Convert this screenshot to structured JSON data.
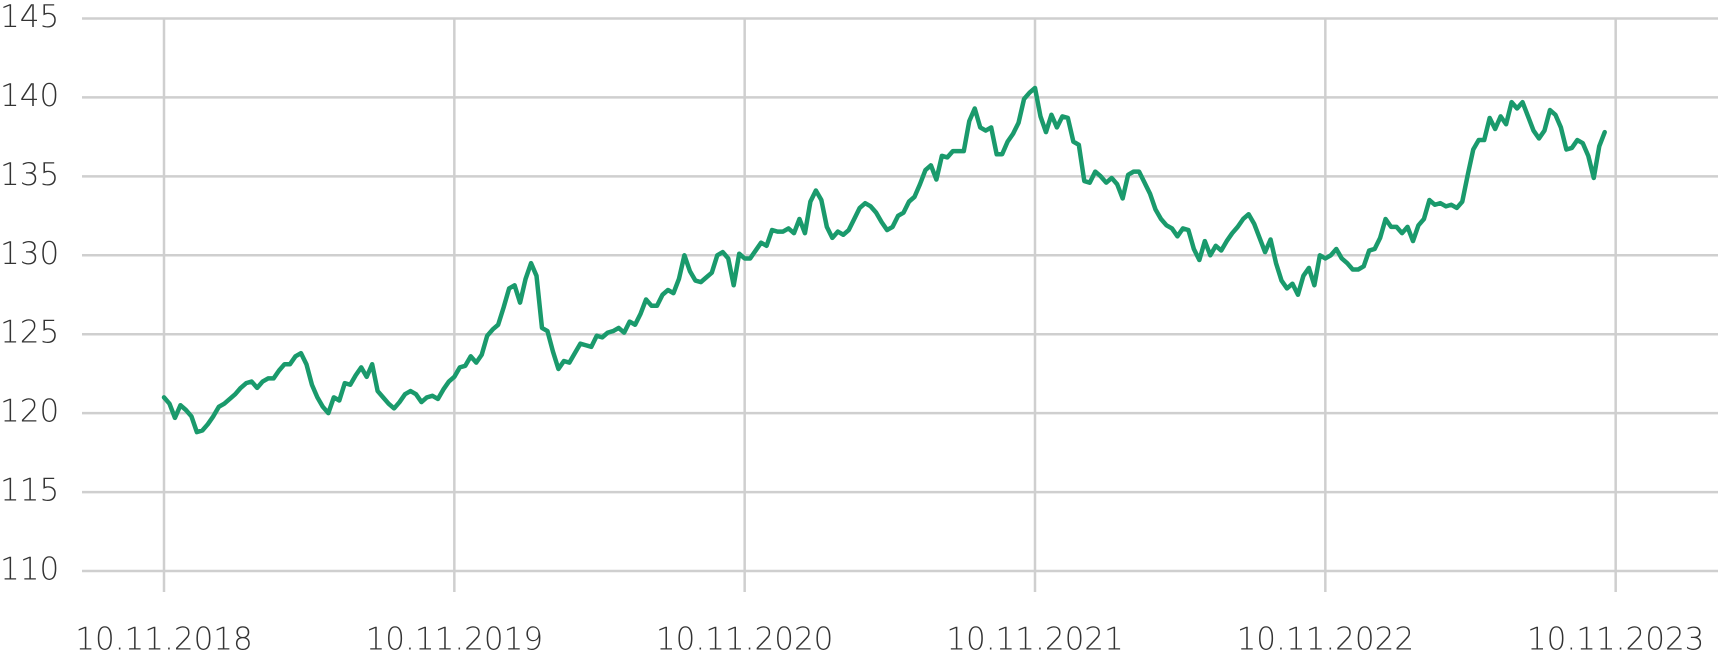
{
  "chart_data": {
    "type": "line",
    "categories": [
      "10.11.2018",
      null,
      null,
      null,
      null,
      null,
      null,
      null,
      null,
      null,
      null,
      null,
      null,
      null,
      null,
      null,
      null,
      null,
      null,
      null,
      null,
      null,
      null,
      null,
      null,
      null,
      null,
      null,
      null,
      null,
      null,
      null,
      null,
      null,
      null,
      null,
      null,
      null,
      null,
      null,
      null,
      null,
      null,
      null,
      null,
      null,
      null,
      null,
      null,
      null,
      null,
      null,
      null,
      "10.11.2019",
      null,
      null,
      null,
      null,
      null,
      null,
      null,
      null,
      null,
      null,
      null,
      null,
      null,
      null,
      null,
      null,
      null,
      null,
      null,
      null,
      null,
      null,
      null,
      null,
      null,
      null,
      null,
      null,
      null,
      null,
      null,
      null,
      null,
      null,
      null,
      null,
      null,
      null,
      null,
      null,
      null,
      null,
      null,
      null,
      null,
      null,
      null,
      null,
      null,
      null,
      null,
      null,
      "10.11.2020",
      null,
      null,
      null,
      null,
      null,
      null,
      null,
      null,
      null,
      null,
      null,
      null,
      null,
      null,
      null,
      null,
      null,
      null,
      null,
      null,
      null,
      null,
      null,
      null,
      null,
      null,
      null,
      null,
      null,
      null,
      null,
      null,
      null,
      null,
      null,
      null,
      null,
      null,
      null,
      null,
      null,
      null,
      null,
      null,
      null,
      null,
      null,
      null,
      null,
      null,
      null,
      null,
      "10.11.2021",
      null,
      null,
      null,
      null,
      null,
      null,
      null,
      null,
      null,
      null,
      null,
      null,
      null,
      null,
      null,
      null,
      null,
      null,
      null,
      null,
      null,
      null,
      null,
      null,
      null,
      null,
      null,
      null,
      null,
      null,
      null,
      null,
      null,
      null,
      null,
      null,
      null,
      null,
      null,
      null,
      null,
      null,
      null,
      null,
      null,
      null,
      null,
      null,
      null,
      null,
      null,
      null,
      "10.11.2022",
      null,
      null,
      null,
      null,
      null,
      null,
      null,
      null,
      null,
      null,
      null,
      null,
      null,
      null,
      null,
      null,
      null,
      null,
      null,
      null,
      null,
      null,
      null,
      null,
      null,
      null,
      null,
      null,
      null,
      null,
      null,
      null,
      null,
      null,
      null,
      null,
      null,
      null,
      null,
      null,
      null,
      null,
      null,
      null,
      null,
      null,
      null,
      null,
      null,
      null,
      null,
      null,
      "10.11.2023"
    ],
    "series": [
      {
        "color": "#1a9a6c",
        "values": [
          121,
          120.6,
          119.7,
          120.5,
          120.2,
          119.8,
          118.8,
          118.9,
          119.3,
          119.8,
          120.4,
          120.6,
          120.9,
          121.2,
          121.6,
          121.9,
          122,
          121.6,
          122,
          122.2,
          122.2,
          122.7,
          123.1,
          123.1,
          123.6,
          123.8,
          123.1,
          121.8,
          121,
          120.4,
          120,
          121,
          120.8,
          121.9,
          121.8,
          122.4,
          122.9,
          122.3,
          123.1,
          121.4,
          121,
          120.6,
          120.3,
          120.7,
          121.2,
          121.4,
          121.2,
          120.7,
          121,
          121.1,
          120.9,
          121.5,
          122,
          122.3,
          122.9,
          123,
          123.6,
          123.2,
          123.7,
          124.9,
          125.3,
          125.6,
          126.7,
          127.9,
          128.1,
          127,
          128.5,
          129.5,
          128.7,
          125.4,
          125.2,
          123.9,
          122.8,
          123.3,
          123.2,
          123.8,
          124.4,
          124.3,
          124.2,
          124.9,
          124.8,
          125.1,
          125.2,
          125.4,
          125.1,
          125.8,
          125.6,
          126.3,
          127.2,
          126.8,
          126.8,
          127.5,
          127.8,
          127.6,
          128.5,
          130,
          129,
          128.4,
          128.3,
          128.6,
          128.9,
          130,
          130.2,
          129.8,
          128.1,
          130.1,
          129.8,
          129.8,
          130.3,
          130.8,
          130.6,
          131.6,
          131.5,
          131.5,
          131.7,
          131.4,
          132.3,
          131.4,
          133.4,
          134.1,
          133.5,
          131.8,
          131.1,
          131.5,
          131.3,
          131.6,
          132.3,
          133,
          133.3,
          133.1,
          132.7,
          132.1,
          131.6,
          131.8,
          132.5,
          132.7,
          133.4,
          133.7,
          134.5,
          135.4,
          135.7,
          134.8,
          136.3,
          136.2,
          136.6,
          136.6,
          136.6,
          138.5,
          139.3,
          138.1,
          137.9,
          138.1,
          136.4,
          136.4,
          137.2,
          137.7,
          138.4,
          139.9,
          140.3,
          140.6,
          138.8,
          137.8,
          138.9,
          138.1,
          138.8,
          138.7,
          137.2,
          137,
          134.7,
          134.6,
          135.3,
          135,
          134.6,
          134.9,
          134.5,
          133.6,
          135.1,
          135.3,
          135.3,
          134.6,
          133.9,
          132.9,
          132.3,
          131.9,
          131.7,
          131.2,
          131.7,
          131.6,
          130.4,
          129.7,
          130.9,
          130,
          130.6,
          130.3,
          130.9,
          131.4,
          131.8,
          132.3,
          132.6,
          132,
          131.1,
          130.2,
          131,
          129.5,
          128.4,
          127.9,
          128.2,
          127.5,
          128.7,
          129.2,
          128.1,
          130,
          129.8,
          130,
          130.4,
          129.8,
          129.5,
          129.1,
          129.1,
          129.3,
          130.3,
          130.4,
          131.1,
          132.3,
          131.8,
          131.8,
          131.4,
          131.8,
          130.9,
          131.9,
          132.3,
          133.5,
          133.2,
          133.3,
          133.1,
          133.2,
          133,
          133.4,
          135.1,
          136.7,
          137.3,
          137.3,
          138.7,
          138,
          138.8,
          138.3,
          139.7,
          139.3,
          139.7,
          138.8,
          137.9,
          137.4,
          137.9,
          139.2,
          138.9,
          138.1,
          136.7,
          136.8,
          137.3,
          137.1,
          136.3,
          134.9,
          136.9,
          137.8,
          null,
          null
        ]
      }
    ],
    "ylim": [
      110,
      145
    ],
    "yticks": [
      110,
      115,
      120,
      125,
      130,
      135,
      140,
      145
    ],
    "grid": true
  }
}
